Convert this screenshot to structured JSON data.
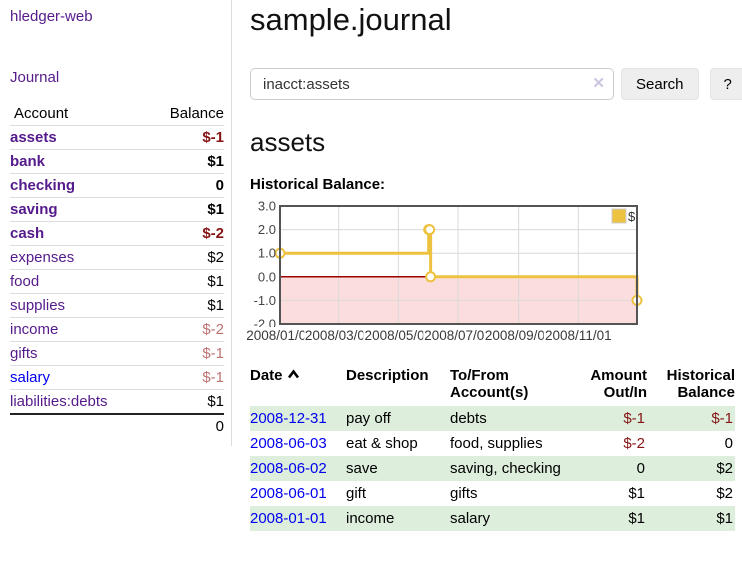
{
  "app": {
    "brand": "hledger-web"
  },
  "colors": {
    "visited_link_purple": "#551a8b",
    "unvisited_link_blue": "#0000ee",
    "negative_red": "#861414",
    "negative_red_faded": "#bf7373",
    "row_stripe_green": "#ddeedd",
    "button_bg": "#eeeeee"
  },
  "sidebar": {
    "journal_link": "Journal",
    "table": {
      "headers": {
        "account": "Account",
        "balance": "Balance"
      },
      "rows": [
        {
          "account": "assets",
          "balance": "$-1",
          "level": 1,
          "bold": true,
          "neg_strong": true
        },
        {
          "account": "bank",
          "balance": "$1",
          "level": 2,
          "bold": true
        },
        {
          "account": "checking",
          "balance": "0",
          "level": 3,
          "bold": true
        },
        {
          "account": "saving",
          "balance": "$1",
          "level": 3,
          "bold": true
        },
        {
          "account": "cash",
          "balance": "$-2",
          "level": 2,
          "bold": true,
          "neg_strong": true
        },
        {
          "account": "expenses",
          "balance": "$2",
          "level": 1
        },
        {
          "account": "food",
          "balance": "$1",
          "level": 2
        },
        {
          "account": "supplies",
          "balance": "$1",
          "level": 2
        },
        {
          "account": "income",
          "balance": "$-2",
          "level": 1,
          "neg_faded": true
        },
        {
          "account": "gifts",
          "balance": "$-1",
          "level": 2,
          "neg_faded": true
        },
        {
          "account": "salary",
          "balance": "$-1",
          "level": 2,
          "neg_faded": true,
          "blue": true
        },
        {
          "account": "liabilities:debts",
          "balance": "$1",
          "level": 1
        }
      ],
      "total": "0"
    }
  },
  "main": {
    "title": "sample.journal",
    "search": {
      "value": "inacct:assets",
      "clear_icon": "✕",
      "button_label": "Search",
      "help_label": "?"
    },
    "account_heading": "assets",
    "chart_label": "Historical Balance:"
  },
  "chart_data": {
    "type": "line",
    "step": true,
    "title": "Historical Balance:",
    "series": [
      {
        "name": "$",
        "color": "#edc240",
        "points": [
          [
            "2008-01-01",
            1
          ],
          [
            "2008-06-01",
            2
          ],
          [
            "2008-06-02",
            2
          ],
          [
            "2008-06-03",
            0
          ],
          [
            "2008-12-31",
            -1
          ]
        ]
      }
    ],
    "x_range": [
      "2008-01-01",
      "2008-12-31"
    ],
    "ylim": [
      -2,
      3
    ],
    "yticks": [
      "3.0",
      "2.0",
      "1.0",
      "0.0",
      "-1.0",
      "-2.0"
    ],
    "xticks": [
      "2008/01/01",
      "2008/03/01",
      "2008/05/01",
      "2008/07/01",
      "2008/09/01",
      "2008/11/01"
    ],
    "legend_position": "top-right",
    "grid": true,
    "grid_color": "#d9d9d9",
    "border_color": "#545454",
    "negative_region_color": "#fcdddd",
    "zero_line_color": "#990000",
    "marker_fill": "#ffffff"
  },
  "register": {
    "headers": {
      "date": "Date",
      "description": "Description",
      "accounts": "To/From Account(s)",
      "amount": "Amount Out/In",
      "balance": "Historical Balance"
    },
    "sort": {
      "column": "date",
      "direction": "ascending"
    },
    "rows": [
      {
        "date": "2008-12-31",
        "description": "pay off",
        "accounts": "debts",
        "amount": "$-1",
        "amount_negative": true,
        "balance": "$-1",
        "balance_negative": true
      },
      {
        "date": "2008-06-03",
        "description": "eat & shop",
        "accounts": "food, supplies",
        "amount": "$-2",
        "amount_negative": true,
        "balance": "0"
      },
      {
        "date": "2008-06-02",
        "description": "save",
        "accounts": "saving, checking",
        "amount": "0",
        "balance": "$2"
      },
      {
        "date": "2008-06-01",
        "description": "gift",
        "accounts": "gifts",
        "amount": "$1",
        "balance": "$2"
      },
      {
        "date": "2008-01-01",
        "description": "income",
        "accounts": "salary",
        "amount": "$1",
        "balance": "$1"
      }
    ]
  }
}
